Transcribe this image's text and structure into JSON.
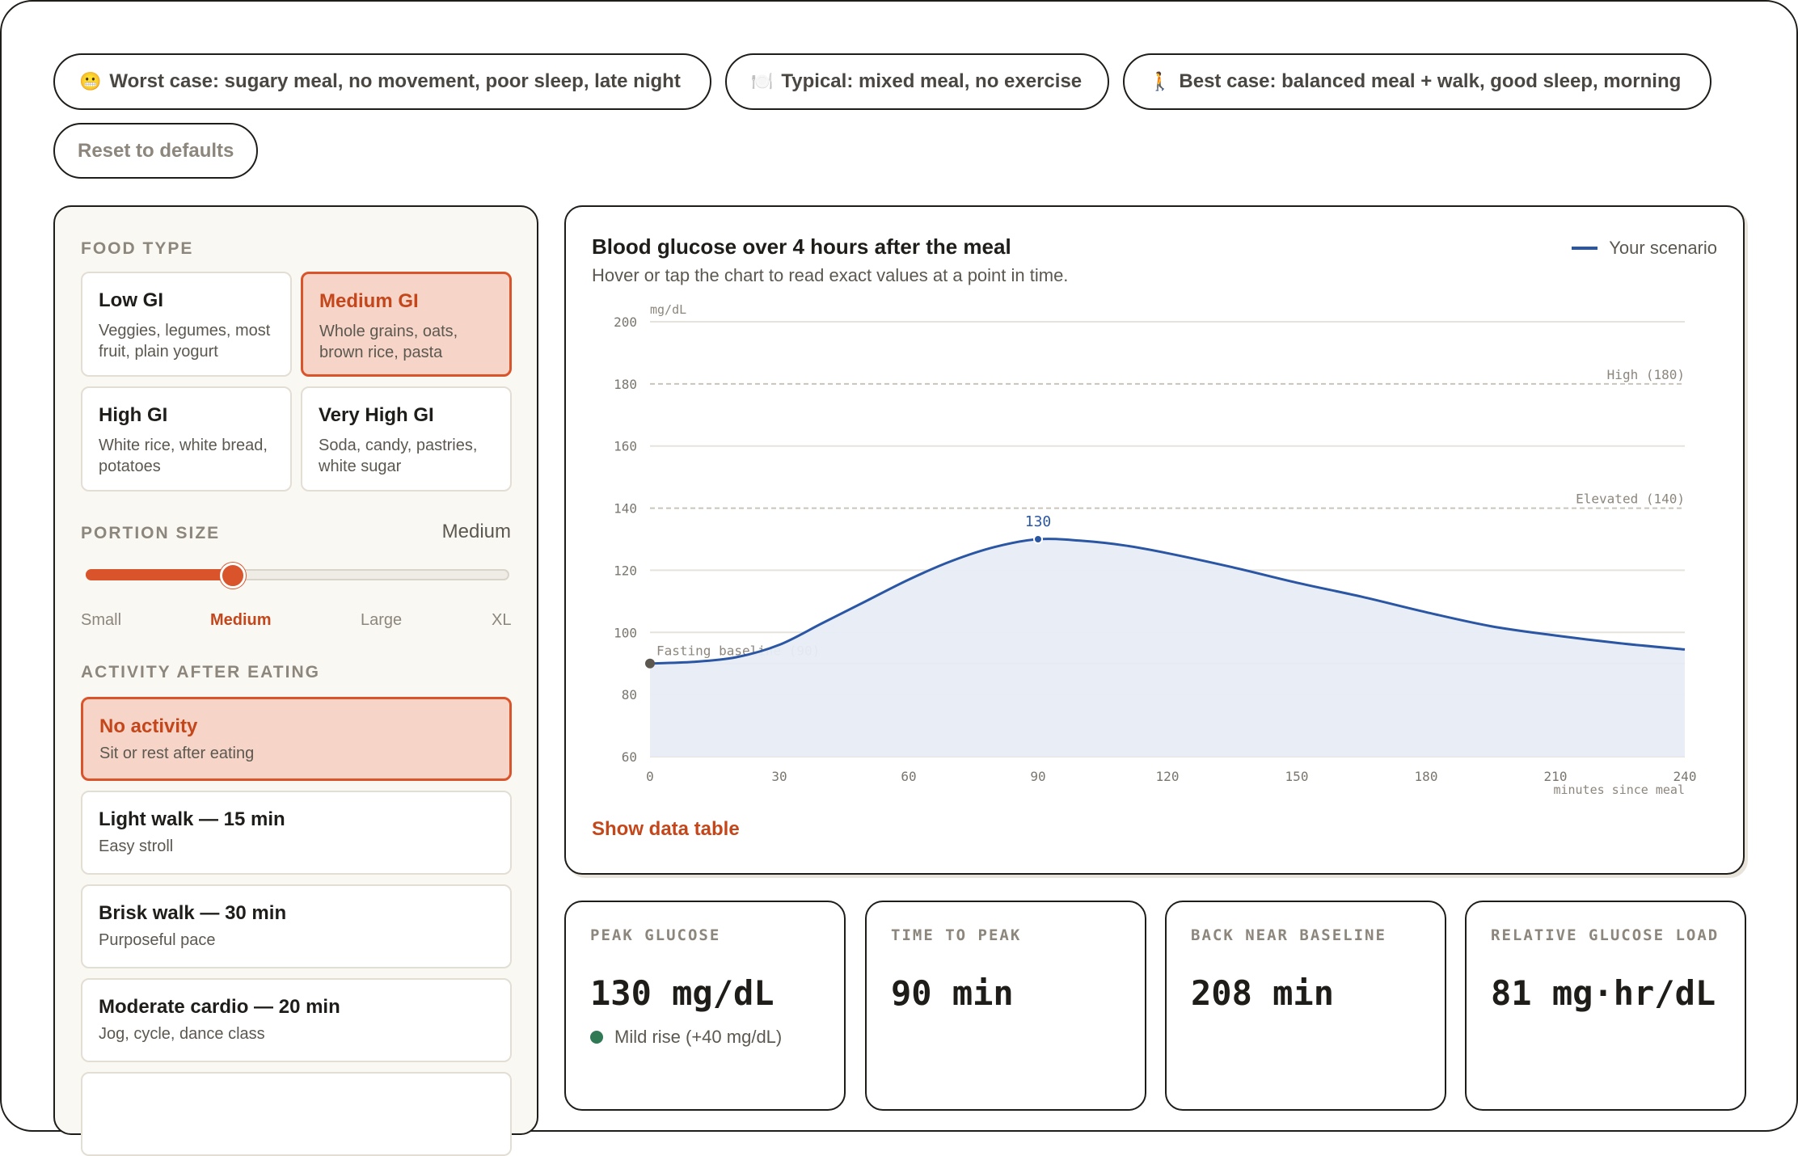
{
  "scenarios": [
    {
      "emoji": "😬",
      "label": "Worst case: sugary meal, no movement, poor sleep, late night"
    },
    {
      "emoji": "🍽️",
      "label": "Typical: mixed meal, no exercise"
    },
    {
      "emoji": "🚶",
      "label": "Best case: balanced meal + walk, good sleep, morning"
    }
  ],
  "reset_label": "Reset to defaults",
  "food": {
    "label": "FOOD TYPE",
    "options": [
      {
        "title": "Low GI",
        "desc": "Veggies, legumes, most fruit, plain yogurt",
        "selected": false
      },
      {
        "title": "Medium GI",
        "desc": "Whole grains, oats, brown rice, pasta",
        "selected": true
      },
      {
        "title": "High GI",
        "desc": "White rice, white bread, potatoes",
        "selected": false
      },
      {
        "title": "Very High GI",
        "desc": "Soda, candy, pastries, white sugar",
        "selected": false
      }
    ]
  },
  "portion": {
    "label": "PORTION SIZE",
    "value": "Medium",
    "level_fraction": 0.333,
    "ticks": [
      "Small",
      "Medium",
      "Large",
      "XL"
    ]
  },
  "activity": {
    "label": "ACTIVITY AFTER EATING",
    "options": [
      {
        "title": "No activity",
        "desc": "Sit or rest after eating",
        "selected": true
      },
      {
        "title": "Light walk — 15 min",
        "desc": "Easy stroll",
        "selected": false
      },
      {
        "title": "Brisk walk — 30 min",
        "desc": "Purposeful pace",
        "selected": false
      },
      {
        "title": "Moderate cardio — 20 min",
        "desc": "Jog, cycle, dance class",
        "selected": false
      }
    ]
  },
  "chart": {
    "title": "Blood glucose over 4 hours after the meal",
    "subtitle": "Hover or tap the chart to read exact values at a point in time.",
    "legend": "Your scenario",
    "show_table": "Show data table",
    "peak_label": "130"
  },
  "chart_data": {
    "type": "area",
    "ylabel": "mg/dL",
    "xlabel": "minutes since meal",
    "ylim": [
      60,
      200
    ],
    "xlim": [
      0,
      240
    ],
    "yticks": [
      60,
      80,
      100,
      120,
      140,
      160,
      180,
      200
    ],
    "xticks": [
      0,
      30,
      60,
      90,
      120,
      150,
      180,
      210,
      240
    ],
    "reference_lines": [
      {
        "label": "High (180)",
        "y": 180
      },
      {
        "label": "Elevated (140)",
        "y": 140
      },
      {
        "label": "Fasting baseline (90)",
        "y": 90
      }
    ],
    "series": [
      {
        "name": "Your scenario",
        "x": [
          0,
          10,
          20,
          30,
          40,
          50,
          60,
          70,
          80,
          90,
          100,
          110,
          120,
          135,
          150,
          165,
          180,
          195,
          210,
          225,
          240
        ],
        "y": [
          90,
          90.5,
          92,
          96,
          103,
          110,
          117,
          123,
          127.5,
          130,
          129.5,
          128,
          125.5,
          121,
          116,
          111.5,
          106.5,
          102,
          99,
          96.5,
          94.5
        ]
      }
    ],
    "colors": {
      "line": "#2a56a4",
      "fill": "#e8edf6"
    }
  },
  "stats": [
    {
      "label": "PEAK GLUCOSE",
      "value": "130 mg/dL",
      "note": "Mild rise (+40 mg/dL)"
    },
    {
      "label": "TIME TO PEAK",
      "value": "90 min",
      "note": ""
    },
    {
      "label": "BACK NEAR BASELINE",
      "value": "208 min",
      "note": ""
    },
    {
      "label": "RELATIVE GLUCOSE LOAD",
      "value": "81 mg·hr/dL",
      "note": ""
    }
  ]
}
